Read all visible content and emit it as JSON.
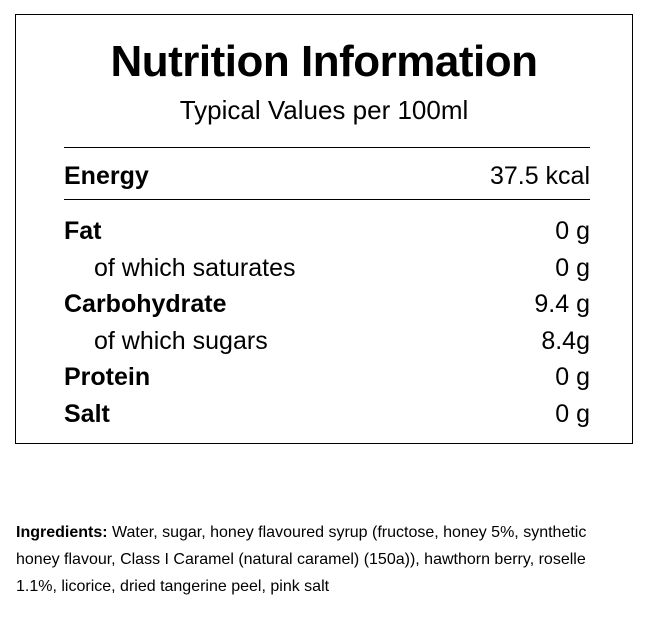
{
  "header": {
    "title": "Nutrition Information",
    "subtitle": "Typical Values per 100ml"
  },
  "energy": {
    "label": "Energy",
    "value": "37.5 kcal"
  },
  "nutrients": [
    {
      "label": "Fat",
      "value": "0 g",
      "sub": {
        "label": "of which saturates",
        "value": "0 g"
      }
    },
    {
      "label": "Carbohydrate",
      "value": "9.4 g",
      "sub": {
        "label": "of which sugars",
        "value": "8.4g"
      }
    },
    {
      "label": "Protein",
      "value": "0 g"
    },
    {
      "label": "Salt",
      "value": "0 g"
    }
  ],
  "ingredients": {
    "label": "Ingredients:",
    "text": "Water, sugar, honey flavoured syrup (fructose, honey 5%, synthetic honey flavour, Class I Caramel (natural caramel) (150a)), hawthorn berry, roselle 1.1%, licorice, dried tangerine peel, pink salt"
  }
}
